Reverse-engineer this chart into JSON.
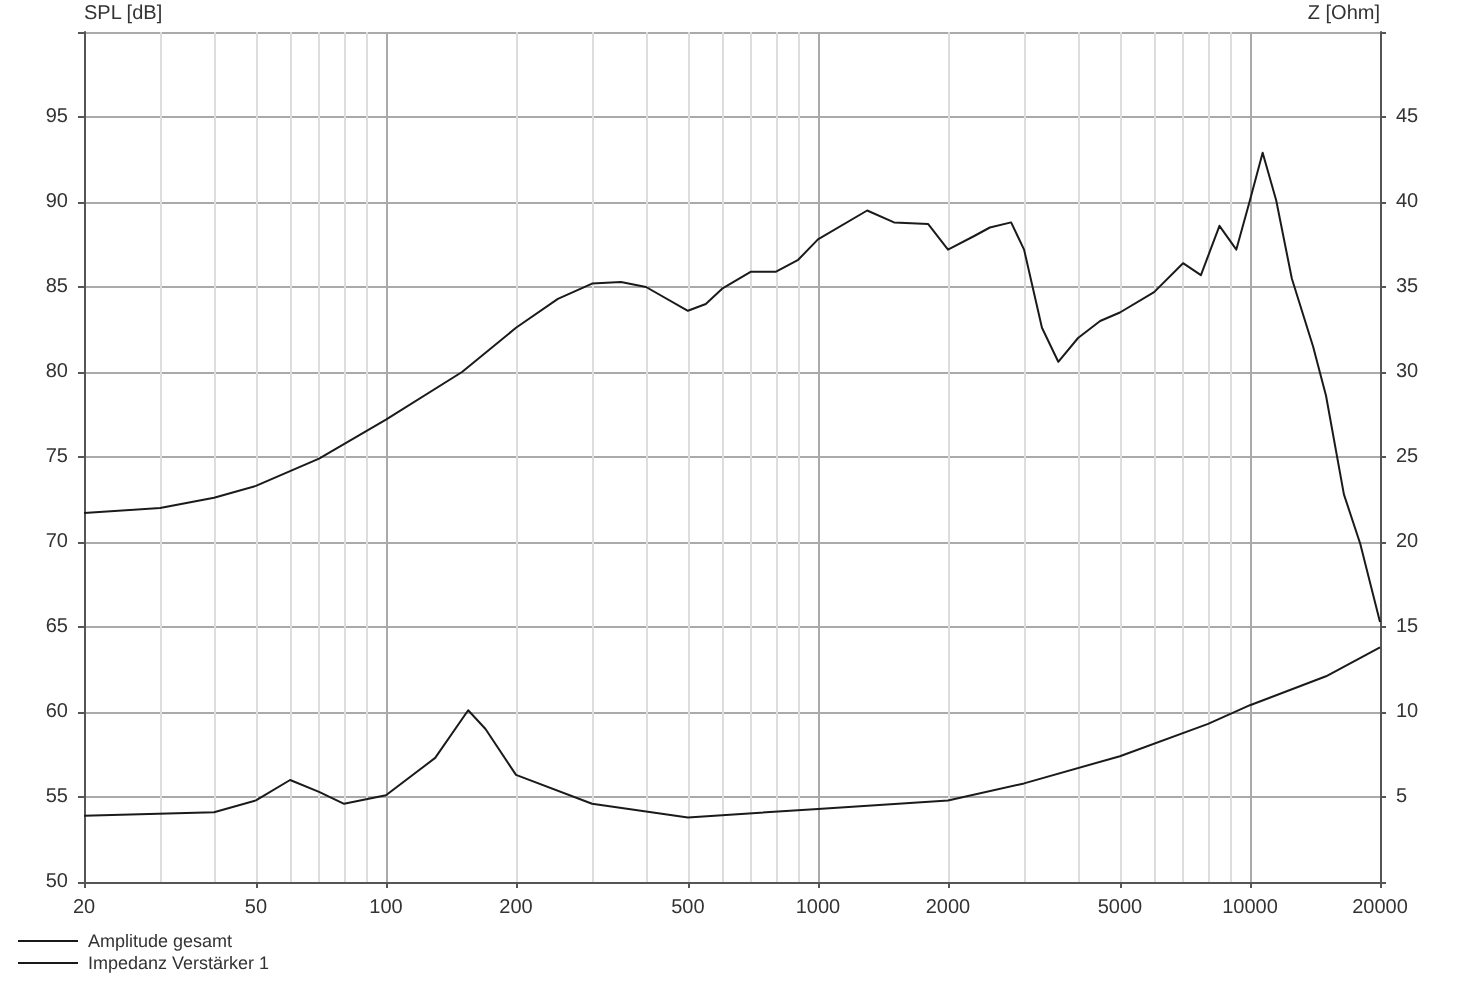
{
  "chart_data": {
    "type": "line",
    "ylabel": "SPL [dB]",
    "y2label": "Z [Ohm]",
    "log": "x",
    "grid": true,
    "legend": "bottom left",
    "marker": "none",
    "line_style": "solid",
    "xlim": [
      20,
      20000
    ],
    "xticks": [
      20,
      50,
      100,
      200,
      500,
      1000,
      2000,
      5000,
      10000,
      20000
    ],
    "ylim": [
      50,
      100
    ],
    "yticks": [
      50,
      55,
      60,
      65,
      70,
      75,
      80,
      85,
      90,
      95,
      {
        "value": 100,
        "label": null
      }
    ],
    "y2lim": [
      0,
      50
    ],
    "y2ticks": [
      {
        "value": 0,
        "label": null
      },
      5,
      10,
      15,
      20,
      25,
      30,
      35,
      40,
      45,
      {
        "value": 50,
        "label": null
      }
    ],
    "series": [
      {
        "name": "Amplitude gesamt",
        "color": "#1a1a1a",
        "x": [
          20,
          30,
          40,
          50,
          70,
          100,
          150,
          200,
          250,
          300,
          350,
          400,
          500,
          550,
          600,
          700,
          800,
          900,
          1000,
          1300,
          1500,
          1800,
          2000,
          2300,
          2500,
          2800,
          3000,
          3300,
          3600,
          4000,
          4500,
          5000,
          6000,
          7000,
          7700,
          8500,
          9300,
          10000,
          10700,
          11500,
          12500,
          14000,
          15000,
          16500,
          18000,
          20000
        ],
        "values": [
          71.7,
          72,
          72.6,
          73.3,
          74.9,
          77.2,
          80,
          82.6,
          84.3,
          85.2,
          85.3,
          85,
          83.6,
          84,
          84.9,
          85.9,
          85.9,
          86.6,
          87.8,
          89.5,
          88.8,
          88.7,
          87.2,
          88,
          88.5,
          88.8,
          87.2,
          82.6,
          80.6,
          82,
          83,
          83.5,
          84.7,
          86.4,
          85.7,
          88.6,
          87.2,
          90.1,
          92.9,
          90.1,
          85.5,
          81.5,
          78.6,
          72.8,
          69.9,
          65.3
        ]
      },
      {
        "name": "Impedanz Verstärker 1",
        "color": "#1a1a1a",
        "axis": "y2",
        "x": [
          20,
          40,
          50,
          60,
          70,
          80,
          100,
          130,
          155,
          170,
          200,
          300,
          500,
          1000,
          2000,
          3000,
          5000,
          8000,
          10000,
          15000,
          20000
        ],
        "values": [
          3.9,
          4.1,
          4.8,
          6,
          5.3,
          4.6,
          5.1,
          7.3,
          10.1,
          9,
          6.3,
          4.6,
          3.8,
          4.3,
          4.8,
          5.8,
          7.4,
          9.3,
          10.4,
          12.1,
          13.8
        ]
      }
    ]
  }
}
